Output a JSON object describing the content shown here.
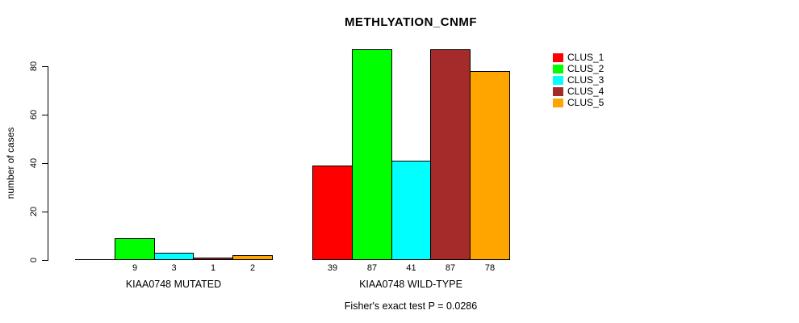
{
  "chart_data": {
    "type": "bar",
    "title": "METHLYATION_CNMF",
    "ylabel": "number of cases",
    "xlabel": "",
    "ylim": [
      0,
      90
    ],
    "yticks": [
      0,
      20,
      40,
      60,
      80
    ],
    "grid": false,
    "legend_position": "right",
    "categories": [
      "KIAA0748 MUTATED",
      "KIAA0748 WILD-TYPE"
    ],
    "series": [
      {
        "name": "CLUS_1",
        "color": "#FF0000",
        "values": [
          0,
          39
        ]
      },
      {
        "name": "CLUS_2",
        "color": "#00FF00",
        "values": [
          9,
          87
        ]
      },
      {
        "name": "CLUS_3",
        "color": "#00FFFF",
        "values": [
          3,
          41
        ]
      },
      {
        "name": "CLUS_4",
        "color": "#A52A2A",
        "values": [
          1,
          87
        ]
      },
      {
        "name": "CLUS_5",
        "color": "#FFA500",
        "values": [
          2,
          78
        ]
      }
    ],
    "bar_value_labels": [
      [
        "",
        "9",
        "3",
        "1",
        "2"
      ],
      [
        "39",
        "87",
        "41",
        "87",
        "78"
      ]
    ],
    "annotation": "Fisher's exact test P = 0.0286"
  }
}
